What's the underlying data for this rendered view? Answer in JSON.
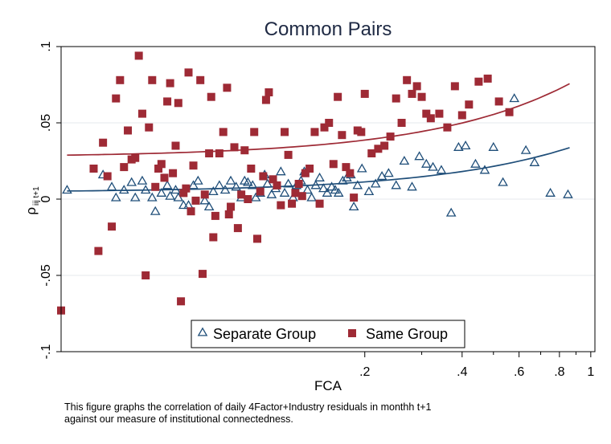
{
  "chart_data": {
    "type": "scatter",
    "title": "Common Pairs",
    "xlabel": "FCA",
    "ylabel": "ρ",
    "ylabel_sub": "iij t+1",
    "x_scale": "log",
    "xlim": [
      0.023,
      1.03
    ],
    "ylim": [
      -0.1,
      0.1
    ],
    "x_ticks": [
      {
        "value": 0.2,
        "label": ".2"
      },
      {
        "value": 0.4,
        "label": ".4"
      },
      {
        "value": 0.6,
        "label": ".6"
      },
      {
        "value": 0.8,
        "label": ".8"
      },
      {
        "value": 1.0,
        "label": "1"
      }
    ],
    "x_minor_ticks": [
      0.3,
      0.5,
      0.7,
      0.9
    ],
    "y_ticks": [
      {
        "value": 0.1,
        "label": ".1"
      },
      {
        "value": 0.05,
        "label": ".05"
      },
      {
        "value": 0,
        "label": "0"
      },
      {
        "value": -0.05,
        "label": "-.05"
      },
      {
        "value": -0.1,
        "label": "-.1"
      }
    ],
    "grid": "horizontal",
    "legend_position": "bottom-center",
    "series": [
      {
        "name": "Separate Group",
        "marker": "triangle-open",
        "color": "#1f4e79",
        "points": [
          [
            0.024,
            0.006
          ],
          [
            0.031,
            0.016
          ],
          [
            0.033,
            0.008
          ],
          [
            0.034,
            0.001
          ],
          [
            0.036,
            0.006
          ],
          [
            0.038,
            0.011
          ],
          [
            0.039,
            0.001
          ],
          [
            0.041,
            0.012
          ],
          [
            0.042,
            0.006
          ],
          [
            0.044,
            0.001
          ],
          [
            0.045,
            -0.008
          ],
          [
            0.047,
            0.004
          ],
          [
            0.049,
            0.009
          ],
          [
            0.05,
            0.002
          ],
          [
            0.052,
            0.006
          ],
          [
            0.053,
            0.001
          ],
          [
            0.055,
            -0.004
          ],
          [
            0.057,
            -0.004
          ],
          [
            0.059,
            0.009
          ],
          [
            0.061,
            0.012
          ],
          [
            0.064,
            -0.001
          ],
          [
            0.066,
            -0.005
          ],
          [
            0.068,
            0.005
          ],
          [
            0.071,
            0.009
          ],
          [
            0.074,
            0.006
          ],
          [
            0.077,
            0.012
          ],
          [
            0.08,
            0.008
          ],
          [
            0.083,
            0.001
          ],
          [
            0.085,
            0.012
          ],
          [
            0.087,
            0.011
          ],
          [
            0.09,
            0.009
          ],
          [
            0.092,
            0.001
          ],
          [
            0.095,
            0.004
          ],
          [
            0.098,
            0.016
          ],
          [
            0.1,
            0.01
          ],
          [
            0.103,
            0.003
          ],
          [
            0.106,
            0.007
          ],
          [
            0.11,
            0.018
          ],
          [
            0.113,
            0.004
          ],
          [
            0.116,
            0.01
          ],
          [
            0.12,
            0.001
          ],
          [
            0.123,
            0.009
          ],
          [
            0.127,
            0.012
          ],
          [
            0.13,
            0.018
          ],
          [
            0.133,
            0.006
          ],
          [
            0.137,
            0.001
          ],
          [
            0.141,
            0.009
          ],
          [
            0.145,
            0.014
          ],
          [
            0.149,
            0.007
          ],
          [
            0.153,
            0.004
          ],
          [
            0.158,
            0.008
          ],
          [
            0.162,
            0.006
          ],
          [
            0.166,
            0.004
          ],
          [
            0.171,
            0.012
          ],
          [
            0.176,
            0.014
          ],
          [
            0.181,
            0.016
          ],
          [
            0.185,
            -0.005
          ],
          [
            0.19,
            0.009
          ],
          [
            0.196,
            0.02
          ],
          [
            0.206,
            0.005
          ],
          [
            0.216,
            0.01
          ],
          [
            0.226,
            0.015
          ],
          [
            0.237,
            0.017
          ],
          [
            0.25,
            0.009
          ],
          [
            0.265,
            0.025
          ],
          [
            0.28,
            0.008
          ],
          [
            0.295,
            0.028
          ],
          [
            0.31,
            0.023
          ],
          [
            0.325,
            0.021
          ],
          [
            0.345,
            0.019
          ],
          [
            0.37,
            -0.009
          ],
          [
            0.39,
            0.034
          ],
          [
            0.41,
            0.035
          ],
          [
            0.44,
            0.023
          ],
          [
            0.47,
            0.019
          ],
          [
            0.5,
            0.034
          ],
          [
            0.535,
            0.011
          ],
          [
            0.58,
            0.066
          ],
          [
            0.63,
            0.032
          ],
          [
            0.67,
            0.024
          ],
          [
            0.75,
            0.004
          ],
          [
            0.85,
            0.003
          ]
        ]
      },
      {
        "name": "Same Group",
        "marker": "square-filled",
        "color": "#9e2a35",
        "points": [
          [
            0.023,
            -0.073
          ],
          [
            0.029,
            0.02
          ],
          [
            0.03,
            -0.034
          ],
          [
            0.031,
            0.037
          ],
          [
            0.032,
            0.015
          ],
          [
            0.033,
            -0.018
          ],
          [
            0.034,
            0.066
          ],
          [
            0.035,
            0.078
          ],
          [
            0.036,
            0.021
          ],
          [
            0.037,
            0.045
          ],
          [
            0.038,
            0.026
          ],
          [
            0.039,
            0.027
          ],
          [
            0.04,
            0.094
          ],
          [
            0.041,
            0.056
          ],
          [
            0.042,
            -0.05
          ],
          [
            0.043,
            0.047
          ],
          [
            0.044,
            0.078
          ],
          [
            0.045,
            0.008
          ],
          [
            0.046,
            0.02
          ],
          [
            0.047,
            0.023
          ],
          [
            0.048,
            0.014
          ],
          [
            0.049,
            0.064
          ],
          [
            0.05,
            0.076
          ],
          [
            0.051,
            0.017
          ],
          [
            0.052,
            0.035
          ],
          [
            0.053,
            0.063
          ],
          [
            0.054,
            -0.067
          ],
          [
            0.055,
            0.004
          ],
          [
            0.056,
            0.007
          ],
          [
            0.057,
            0.083
          ],
          [
            0.058,
            -0.008
          ],
          [
            0.059,
            0.022
          ],
          [
            0.06,
            -0.001
          ],
          [
            0.062,
            0.078
          ],
          [
            0.063,
            -0.049
          ],
          [
            0.064,
            0.003
          ],
          [
            0.066,
            0.03
          ],
          [
            0.067,
            0.067
          ],
          [
            0.068,
            -0.025
          ],
          [
            0.069,
            -0.011
          ],
          [
            0.071,
            0.03
          ],
          [
            0.073,
            0.044
          ],
          [
            0.075,
            0.073
          ],
          [
            0.076,
            -0.01
          ],
          [
            0.077,
            -0.005
          ],
          [
            0.079,
            0.034
          ],
          [
            0.081,
            -0.019
          ],
          [
            0.083,
            0.003
          ],
          [
            0.085,
            0.032
          ],
          [
            0.087,
            0
          ],
          [
            0.089,
            0.02
          ],
          [
            0.091,
            0.044
          ],
          [
            0.093,
            -0.026
          ],
          [
            0.095,
            0.005
          ],
          [
            0.097,
            0.015
          ],
          [
            0.099,
            0.065
          ],
          [
            0.101,
            0.07
          ],
          [
            0.104,
            0.013
          ],
          [
            0.107,
            0.009
          ],
          [
            0.11,
            -0.004
          ],
          [
            0.113,
            0.044
          ],
          [
            0.116,
            0.029
          ],
          [
            0.119,
            -0.003
          ],
          [
            0.122,
            0.004
          ],
          [
            0.125,
            0.01
          ],
          [
            0.128,
            0.002
          ],
          [
            0.131,
            0.017
          ],
          [
            0.135,
            0.02
          ],
          [
            0.14,
            0.044
          ],
          [
            0.145,
            -0.003
          ],
          [
            0.15,
            0.047
          ],
          [
            0.155,
            0.05
          ],
          [
            0.16,
            0.023
          ],
          [
            0.165,
            0.067
          ],
          [
            0.17,
            0.042
          ],
          [
            0.175,
            0.021
          ],
          [
            0.18,
            0.017
          ],
          [
            0.185,
            0.001
          ],
          [
            0.19,
            0.045
          ],
          [
            0.195,
            0.044
          ],
          [
            0.2,
            0.069
          ],
          [
            0.21,
            0.03
          ],
          [
            0.22,
            0.033
          ],
          [
            0.23,
            0.035
          ],
          [
            0.24,
            0.041
          ],
          [
            0.25,
            0.066
          ],
          [
            0.26,
            0.05
          ],
          [
            0.27,
            0.078
          ],
          [
            0.28,
            0.069
          ],
          [
            0.29,
            0.074
          ],
          [
            0.3,
            0.067
          ],
          [
            0.31,
            0.056
          ],
          [
            0.32,
            0.053
          ],
          [
            0.34,
            0.056
          ],
          [
            0.36,
            0.047
          ],
          [
            0.38,
            0.074
          ],
          [
            0.4,
            0.055
          ],
          [
            0.42,
            0.062
          ],
          [
            0.45,
            0.077
          ],
          [
            0.48,
            0.079
          ],
          [
            0.52,
            0.064
          ],
          [
            0.56,
            0.057
          ]
        ]
      }
    ],
    "fit_lines": [
      {
        "series": "Separate Group",
        "color": "#1f4e79",
        "intercept": 0.0045,
        "slope": 0.034
      },
      {
        "series": "Same Group",
        "color": "#9e2a35",
        "intercept": 0.0275,
        "slope": 0.056
      }
    ]
  },
  "caption": {
    "line1": "This figure graphs the correlation of daily 4Factor+Industry residuals in monthh t+1",
    "line2": " against our measure of institutional connectedness."
  }
}
